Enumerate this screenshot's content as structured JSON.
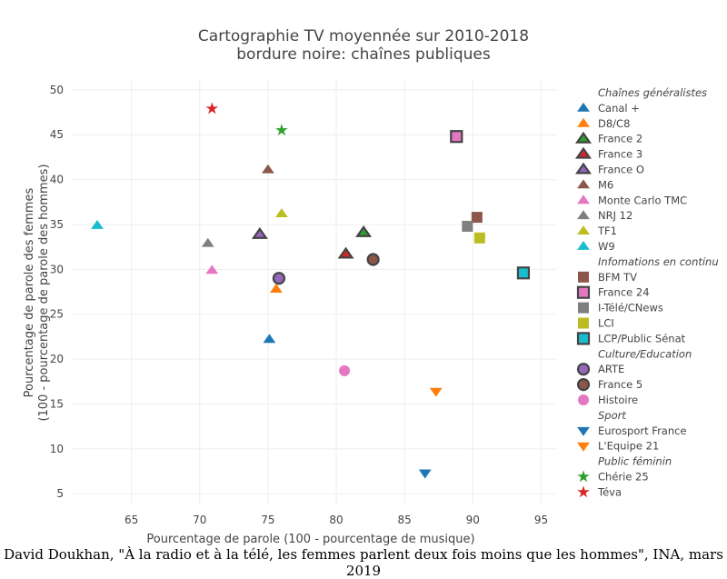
{
  "chart_data": {
    "type": "scatter",
    "title": [
      "Cartographie TV moyennée sur 2010-2018",
      "bordure noire: chaînes publiques"
    ],
    "xlabel": "Pourcentage de parole (100 - pourcentage de musique)",
    "ylabel": [
      "Pourcentage de parole des femmes",
      "(100 - pourcentage de parole des hommes)"
    ],
    "xlim": [
      60.7,
      96.1
    ],
    "ylim": [
      3.7,
      51.1
    ],
    "xticks": [
      65,
      70,
      75,
      80,
      85,
      90,
      95
    ],
    "yticks": [
      5,
      10,
      15,
      20,
      25,
      30,
      35,
      40,
      45,
      50
    ],
    "grid": true,
    "legend_position": "right",
    "groups": [
      {
        "name": "Chaînes généralistes",
        "symbol": "triangle-up",
        "series": [
          {
            "name": "Canal +",
            "color": "#1f77b4",
            "public": false,
            "x": 75.1,
            "y": 22.2
          },
          {
            "name": "D8/C8",
            "color": "#ff7f0e",
            "public": false,
            "x": 75.6,
            "y": 27.8
          },
          {
            "name": "France 2",
            "color": "#2ca02c",
            "public": true,
            "x": 82.0,
            "y": 34.1
          },
          {
            "name": "France 3",
            "color": "#d62728",
            "public": true,
            "x": 80.7,
            "y": 31.7
          },
          {
            "name": "France O",
            "color": "#9467bd",
            "public": true,
            "x": 74.4,
            "y": 33.9
          },
          {
            "name": "M6",
            "color": "#8c564b",
            "public": false,
            "x": 75.0,
            "y": 41.1
          },
          {
            "name": "Monte Carlo TMC",
            "color": "#e377c2",
            "public": false,
            "x": 70.9,
            "y": 29.9
          },
          {
            "name": "NRJ 12",
            "color": "#7f7f7f",
            "public": false,
            "x": 70.6,
            "y": 32.9
          },
          {
            "name": "TF1",
            "color": "#bcbd22",
            "public": false,
            "x": 76.0,
            "y": 36.2
          },
          {
            "name": "W9",
            "color": "#17becf",
            "public": false,
            "x": 62.5,
            "y": 34.9
          }
        ]
      },
      {
        "name": "Infomations en continu",
        "symbol": "square",
        "series": [
          {
            "name": "BFM TV",
            "color": "#8c564b",
            "public": false,
            "x": 90.3,
            "y": 35.8
          },
          {
            "name": "France 24",
            "color": "#e377c2",
            "public": true,
            "x": 88.8,
            "y": 44.8
          },
          {
            "name": "I-Télé/CNews",
            "color": "#7f7f7f",
            "public": false,
            "x": 89.6,
            "y": 34.8
          },
          {
            "name": "LCI",
            "color": "#bcbd22",
            "public": false,
            "x": 90.5,
            "y": 33.5
          },
          {
            "name": "LCP/Public Sénat",
            "color": "#17becf",
            "public": true,
            "x": 93.7,
            "y": 29.6
          }
        ]
      },
      {
        "name": "Culture/Education",
        "symbol": "circle",
        "series": [
          {
            "name": "ARTE",
            "color": "#9467bd",
            "public": true,
            "x": 75.8,
            "y": 29.0
          },
          {
            "name": "France 5",
            "color": "#8c564b",
            "public": true,
            "x": 82.7,
            "y": 31.1
          },
          {
            "name": "Histoire",
            "color": "#e377c2",
            "public": false,
            "x": 80.6,
            "y": 18.7
          }
        ]
      },
      {
        "name": "Sport",
        "symbol": "triangle-down",
        "series": [
          {
            "name": "Eurosport France",
            "color": "#1f77b4",
            "public": false,
            "x": 86.5,
            "y": 7.3
          },
          {
            "name": "L'Equipe 21",
            "color": "#ff7f0e",
            "public": false,
            "x": 87.3,
            "y": 16.4
          }
        ]
      },
      {
        "name": "Public féminin",
        "symbol": "star",
        "series": [
          {
            "name": "Chérie 25",
            "color": "#2ca02c",
            "public": false,
            "x": 76.0,
            "y": 45.5
          },
          {
            "name": "Téva",
            "color": "#d62728",
            "public": false,
            "x": 70.9,
            "y": 47.9
          }
        ]
      }
    ]
  },
  "caption": "David Doukhan, \"À la radio et à la télé, les femmes parlent deux fois moins que les hommes\", INA, mars 2019"
}
